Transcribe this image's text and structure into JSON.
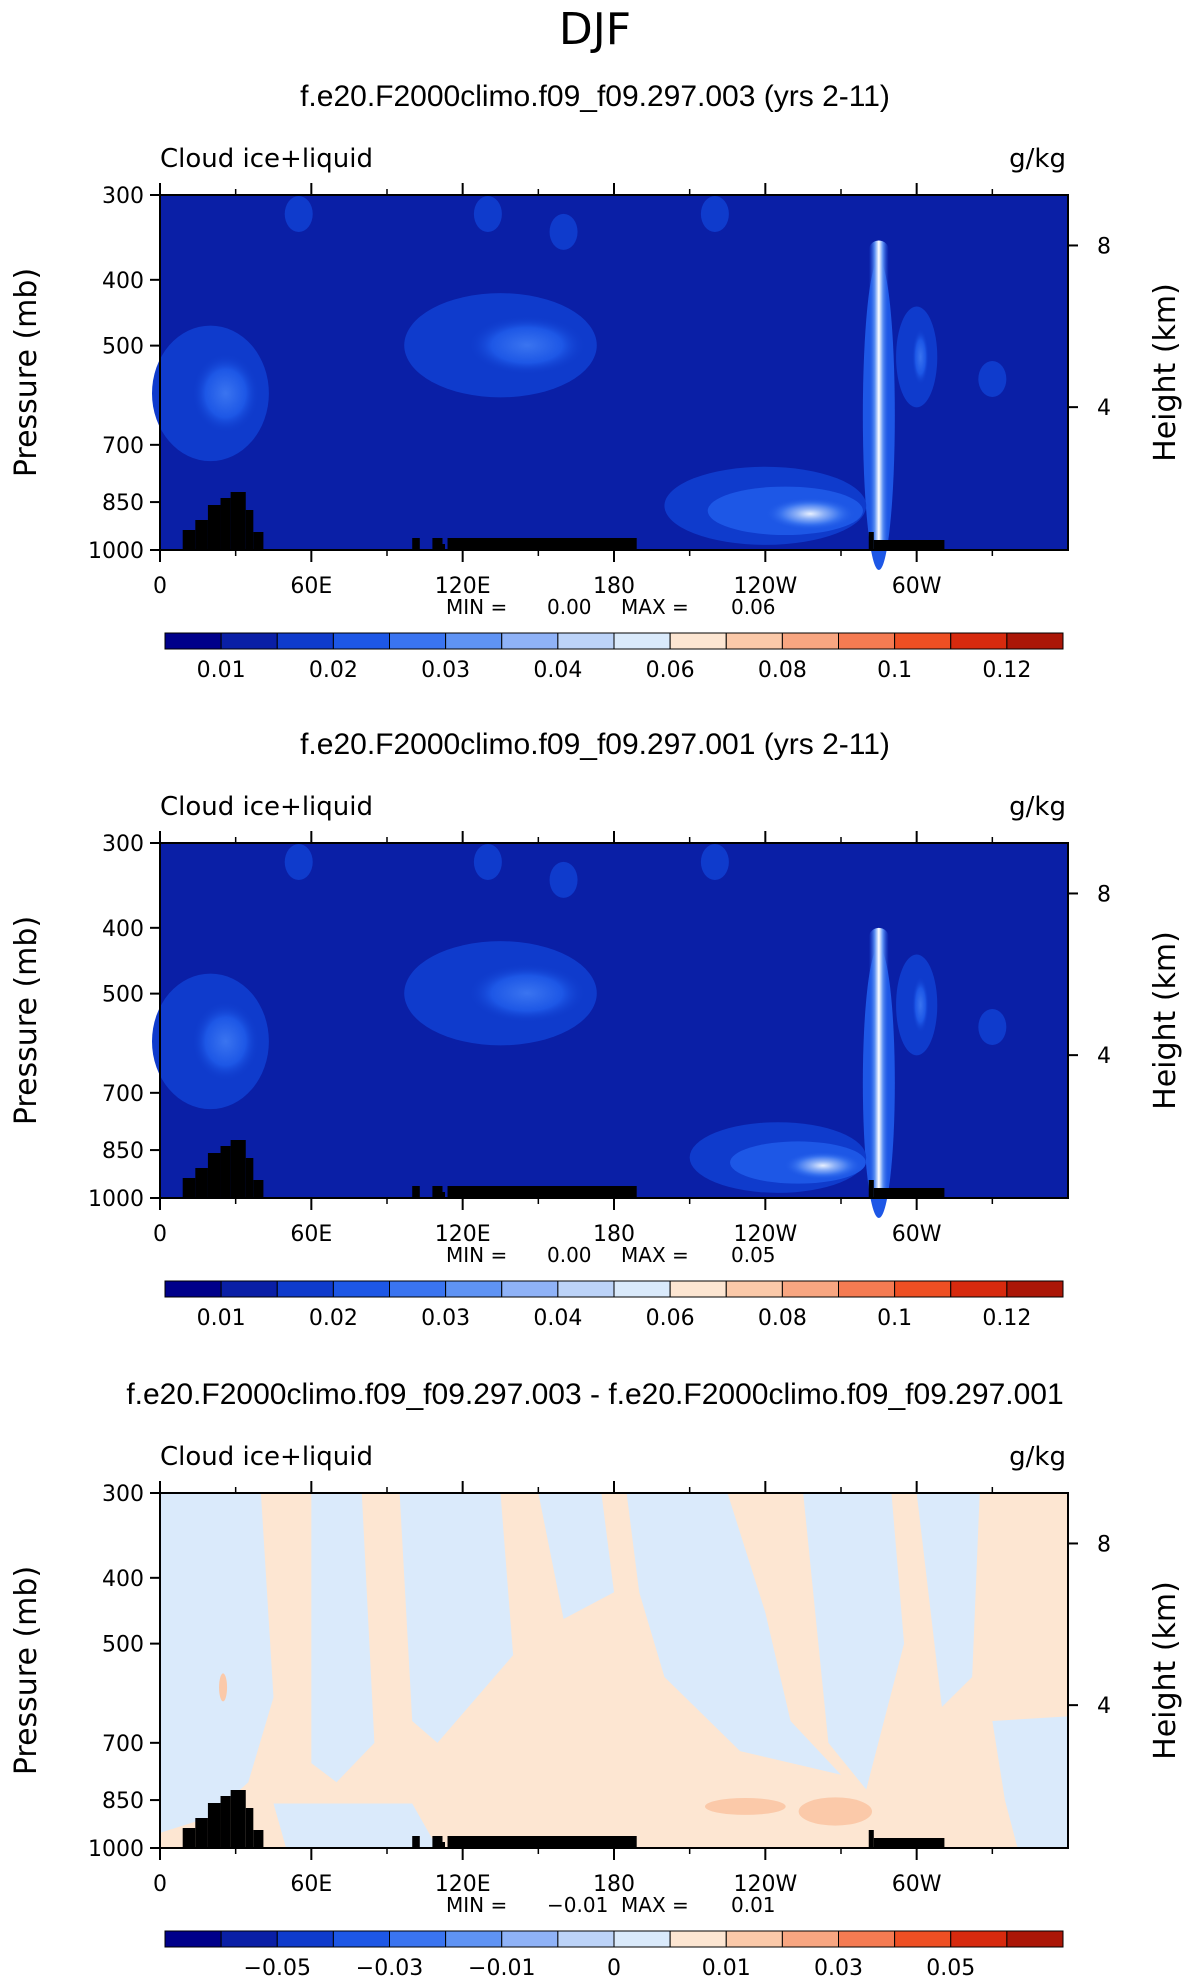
{
  "main_title": "DJF",
  "colors": {
    "sequential": [
      "#00008a",
      "#0a1fa6",
      "#0f3bcc",
      "#1d57e6",
      "#3a74f0",
      "#5f93f4",
      "#8fb2f7",
      "#bcd3f8",
      "#daeafb",
      "#fde6d2",
      "#fbc9a9",
      "#f8a681",
      "#f57b52",
      "#ee4f23",
      "#d72a0e",
      "#ab1607",
      "#7b0000"
    ],
    "ocean_background": "#0a1fa6",
    "land": "#000000",
    "diff_positive": "#fde6d2",
    "diff_negative": "#daeafb",
    "diff_strong_positive": "#fbc9a9"
  },
  "chart_data": [
    {
      "type": "heatmap",
      "title": "f.e20.F2000climo.f09_f09.297.003 (yrs 2-11)",
      "left_label": "Cloud ice+liquid",
      "right_label": "g/kg",
      "ylabel": "Pressure (mb)",
      "ylabel_right": "Height (km)",
      "y_ticks": [
        "300",
        "400",
        "500",
        "700",
        "850",
        "1000"
      ],
      "y_ticks_right": [
        "8",
        "4"
      ],
      "x_ticks": [
        "0",
        "60E",
        "120E",
        "180",
        "120W",
        "60W"
      ],
      "stats": {
        "min_label": "MIN =",
        "min": "0.00",
        "max_label": "MAX =",
        "max": "0.06"
      },
      "colorbar_labels": [
        "0.01",
        "0.02",
        "0.03",
        "0.04",
        "0.06",
        "0.08",
        "0.1",
        "0.12"
      ],
      "features": [
        {
          "name": "Andes column",
          "lon": 285,
          "p": [
            350,
            1000
          ],
          "value": 0.06
        },
        {
          "name": "Eastern Pacific low cloud",
          "lon": [
            200,
            280
          ],
          "p": [
            780,
            950
          ],
          "value": 0.05
        },
        {
          "name": "Western Pacific anvil",
          "lon": [
            100,
            170
          ],
          "p": [
            430,
            580
          ],
          "value": 0.035
        },
        {
          "name": "Africa mid-level",
          "lon": [
            0,
            40
          ],
          "p": [
            480,
            720
          ],
          "value": 0.04
        },
        {
          "name": "South America mid-level",
          "lon": [
            295,
            305
          ],
          "p": [
            450,
            600
          ],
          "value": 0.04
        }
      ]
    },
    {
      "type": "heatmap",
      "title": "f.e20.F2000climo.f09_f09.297.001 (yrs 2-11)",
      "left_label": "Cloud ice+liquid",
      "right_label": "g/kg",
      "ylabel": "Pressure (mb)",
      "ylabel_right": "Height (km)",
      "y_ticks": [
        "300",
        "400",
        "500",
        "700",
        "850",
        "1000"
      ],
      "y_ticks_right": [
        "8",
        "4"
      ],
      "x_ticks": [
        "0",
        "60E",
        "120E",
        "180",
        "120W",
        "60W"
      ],
      "stats": {
        "min_label": "MIN =",
        "min": "0.00",
        "max_label": "MAX =",
        "max": "0.05"
      },
      "colorbar_labels": [
        "0.01",
        "0.02",
        "0.03",
        "0.04",
        "0.06",
        "0.08",
        "0.1",
        "0.12"
      ],
      "features": [
        {
          "name": "Andes column",
          "lon": 285,
          "p": [
            400,
            1000
          ],
          "value": 0.05
        },
        {
          "name": "Eastern Pacific low cloud",
          "lon": [
            210,
            280
          ],
          "p": [
            800,
            950
          ],
          "value": 0.04
        },
        {
          "name": "Western Pacific anvil",
          "lon": [
            100,
            170
          ],
          "p": [
            430,
            580
          ],
          "value": 0.035
        },
        {
          "name": "Africa mid-level",
          "lon": [
            0,
            40
          ],
          "p": [
            480,
            720
          ],
          "value": 0.04
        },
        {
          "name": "South America mid-level",
          "lon": [
            295,
            305
          ],
          "p": [
            450,
            600
          ],
          "value": 0.04
        }
      ]
    },
    {
      "type": "heatmap",
      "title": "f.e20.F2000climo.f09_f09.297.003 - f.e20.F2000climo.f09_f09.297.001",
      "left_label": "Cloud ice+liquid",
      "right_label": "g/kg",
      "ylabel": "Pressure (mb)",
      "ylabel_right": "Height (km)",
      "y_ticks": [
        "300",
        "400",
        "500",
        "700",
        "850",
        "1000"
      ],
      "y_ticks_right": [
        "8",
        "4"
      ],
      "x_ticks": [
        "0",
        "60E",
        "120E",
        "180",
        "120W",
        "60W"
      ],
      "stats": {
        "min_label": "MIN =",
        "min": "−0.01",
        "max_label": "MAX =",
        "max": "0.01"
      },
      "colorbar_labels": [
        "−0.05",
        "−0.03",
        "−0.01",
        "0",
        "0.01",
        "0.03",
        "0.05"
      ],
      "features": [
        {
          "name": "Eastern Pacific positive difference",
          "lon": [
            200,
            280
          ],
          "p": [
            820,
            920
          ],
          "value": 0.01
        }
      ]
    }
  ]
}
